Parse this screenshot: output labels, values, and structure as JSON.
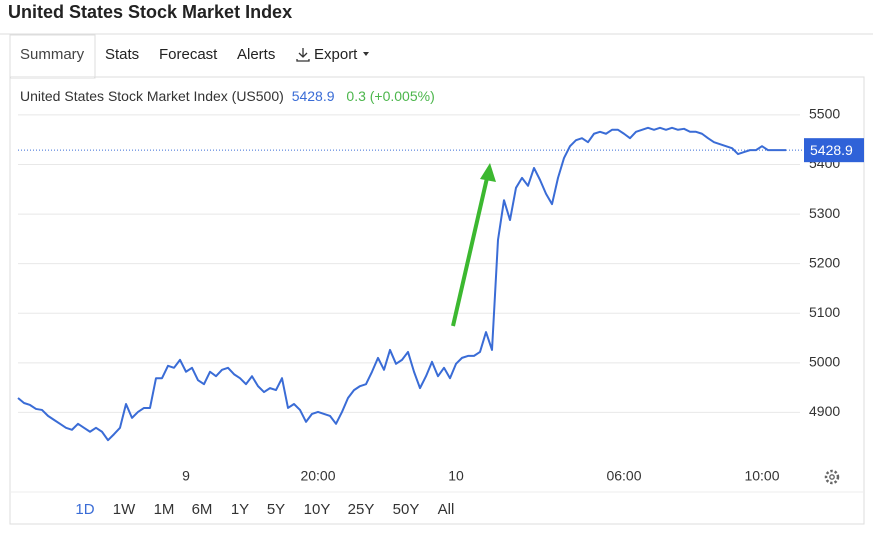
{
  "chart_data": {
    "type": "line",
    "title": "United States Stock Market Index",
    "tabs": [
      "Summary",
      "Stats",
      "Forecast",
      "Alerts",
      "Export"
    ],
    "change": "0.3 (+0.005%)",
    "last": 5428.9,
    "ranges": [
      "1D",
      "1W",
      "1M",
      "6M",
      "1Y",
      "5Y",
      "10Y",
      "25Y",
      "50Y",
      "All"
    ],
    "categories": [
      null,
      null,
      null,
      null,
      null,
      null,
      null,
      null,
      null,
      null,
      null,
      null,
      null,
      null,
      null,
      null,
      null,
      null,
      null,
      null,
      null,
      null,
      null,
      null,
      null,
      null,
      null,
      null,
      "9",
      null,
      null,
      null,
      null,
      null,
      null,
      null,
      null,
      null,
      null,
      null,
      null,
      null,
      null,
      null,
      null,
      null,
      null,
      null,
      null,
      null,
      "20:00",
      null,
      null,
      null,
      null,
      null,
      null,
      null,
      null,
      null,
      null,
      null,
      null,
      null,
      null,
      null,
      null,
      null,
      null,
      null,
      null,
      null,
      null,
      "10",
      null,
      null,
      null,
      null,
      null,
      null,
      null,
      null,
      null,
      null,
      null,
      null,
      null,
      null,
      null,
      null,
      null,
      null,
      null,
      null,
      null,
      null,
      null,
      null,
      null,
      null,
      null,
      "06:00",
      null,
      null,
      null,
      null,
      null,
      null,
      null,
      null,
      null,
      null,
      null,
      null,
      null,
      null,
      null,
      null,
      null,
      null,
      null,
      null,
      null,
      null,
      "10:00",
      null,
      null,
      null,
      null
    ],
    "series": [
      {
        "name": "United States Stock Market Index (US500)",
        "color": "#3a6cd6",
        "values": [
          4929,
          4919,
          4915,
          4907,
          4905,
          4893,
          4885,
          4877,
          4869,
          4865,
          4877,
          4869,
          4861,
          4869,
          4861,
          4844,
          4856,
          4869,
          4917,
          4889,
          4901,
          4909,
          4909,
          4969,
          4969,
          4994,
          4990,
          5006,
          4982,
          4990,
          4965,
          4957,
          4982,
          4973,
          4986,
          4990,
          4977,
          4969,
          4957,
          4973,
          4953,
          4941,
          4949,
          4945,
          4969,
          4909,
          4917,
          4905,
          4881,
          4897,
          4901,
          4897,
          4893,
          4877,
          4901,
          4929,
          4945,
          4953,
          4957,
          4982,
          5010,
          4986,
          5026,
          4998,
          5006,
          5022,
          4982,
          4949,
          4973,
          5002,
          4973,
          4990,
          4969,
          4998,
          5010,
          5014,
          5014,
          5022,
          5062,
          5026,
          5248,
          5328,
          5288,
          5353,
          5373,
          5357,
          5393,
          5369,
          5341,
          5320,
          5373,
          5413,
          5437,
          5449,
          5453,
          5445,
          5462,
          5466,
          5462,
          5470,
          5470,
          5462,
          5453,
          5466,
          5470,
          5474,
          5470,
          5474,
          5470,
          5474,
          5470,
          5472,
          5466,
          5466,
          5462,
          5453,
          5445,
          5441,
          5437,
          5433,
          5421,
          5425,
          5429,
          5429,
          5437,
          5429,
          5429,
          5429,
          5429
        ]
      }
    ],
    "ylim": [
      4800,
      5520
    ],
    "yticks": [
      4900,
      5000,
      5100,
      5200,
      5300,
      5400,
      5500
    ],
    "grid": true
  }
}
